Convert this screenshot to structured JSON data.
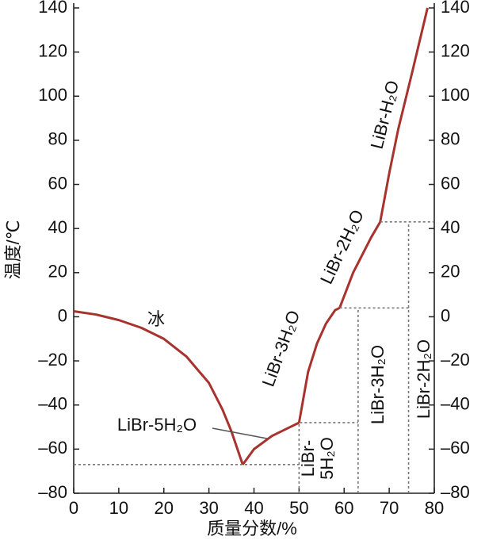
{
  "chart_data": {
    "type": "line",
    "x_label": "质量分数/%",
    "y_label": "温度/℃",
    "xlim": [
      0,
      80
    ],
    "xticks": [
      0,
      10,
      20,
      30,
      40,
      50,
      60,
      70,
      80
    ],
    "ylim": [
      -80,
      140
    ],
    "yticks": [
      {
        "value": -80,
        "label": "–80"
      },
      {
        "value": -60,
        "label": "–60"
      },
      {
        "value": -40,
        "label": "–40"
      },
      {
        "value": -20,
        "label": "–20"
      },
      0,
      20,
      40,
      60,
      80,
      100,
      120,
      140
    ],
    "series": [
      {
        "color": "#a8322d",
        "dashed": false,
        "x": [
          0,
          5,
          10,
          15,
          20,
          25,
          30,
          33,
          35,
          37.5
        ],
        "values": [
          2.5,
          1,
          -1.5,
          -5,
          -10,
          -18,
          -30,
          -42,
          -52,
          -67
        ]
      },
      {
        "color": "#a8322d",
        "dashed": false,
        "x": [
          37.5,
          40,
          44,
          48,
          50
        ],
        "values": [
          -67,
          -60,
          -54,
          -50,
          -48
        ]
      },
      {
        "color": "#a8322d",
        "dashed": false,
        "x": [
          50,
          52,
          54,
          56,
          58,
          59
        ],
        "values": [
          -48,
          -25,
          -12,
          -3,
          3,
          4
        ]
      },
      {
        "color": "#a8322d",
        "dashed": false,
        "x": [
          59,
          62,
          64,
          66,
          68
        ],
        "values": [
          4,
          20,
          28,
          36,
          43
        ]
      },
      {
        "color": "#a8322d",
        "dashed": false,
        "x": [
          68,
          70,
          72,
          75,
          78.5
        ],
        "values": [
          43,
          65,
          85,
          110,
          140
        ]
      },
      {
        "color": "#777777",
        "dashed": true,
        "x": [
          0,
          50
        ],
        "values": [
          -67,
          -67
        ]
      },
      {
        "color": "#777777",
        "dashed": true,
        "x": [
          50,
          50,
          63.1
        ],
        "values": [
          -80,
          -48,
          -48
        ]
      },
      {
        "color": "#777777",
        "dashed": true,
        "x": [
          63.1,
          63.1
        ],
        "values": [
          -80,
          4
        ]
      },
      {
        "color": "#777777",
        "dashed": true,
        "x": [
          59,
          74.3
        ],
        "values": [
          4,
          4
        ]
      },
      {
        "color": "#777777",
        "dashed": true,
        "x": [
          74.3,
          74.3
        ],
        "values": [
          -80,
          43
        ]
      },
      {
        "color": "#777777",
        "dashed": true,
        "x": [
          68,
          80
        ],
        "values": [
          43,
          43
        ]
      }
    ],
    "annotations": [
      {
        "text": [
          "冰"
        ]
      },
      {
        "text": [
          "LiBr-5H₂O"
        ]
      },
      {
        "text": [
          "LiBr-3H₂O"
        ]
      },
      {
        "text": [
          "LiBr-2H₂O"
        ]
      },
      {
        "text": [
          "LiBr-H₂O"
        ]
      },
      {
        "text": [
          "LiBr-",
          "5H₂O"
        ]
      },
      {
        "text": [
          "LiBr-3H₂O"
        ]
      },
      {
        "text": [
          "LiBr-2H₂O"
        ]
      }
    ]
  }
}
